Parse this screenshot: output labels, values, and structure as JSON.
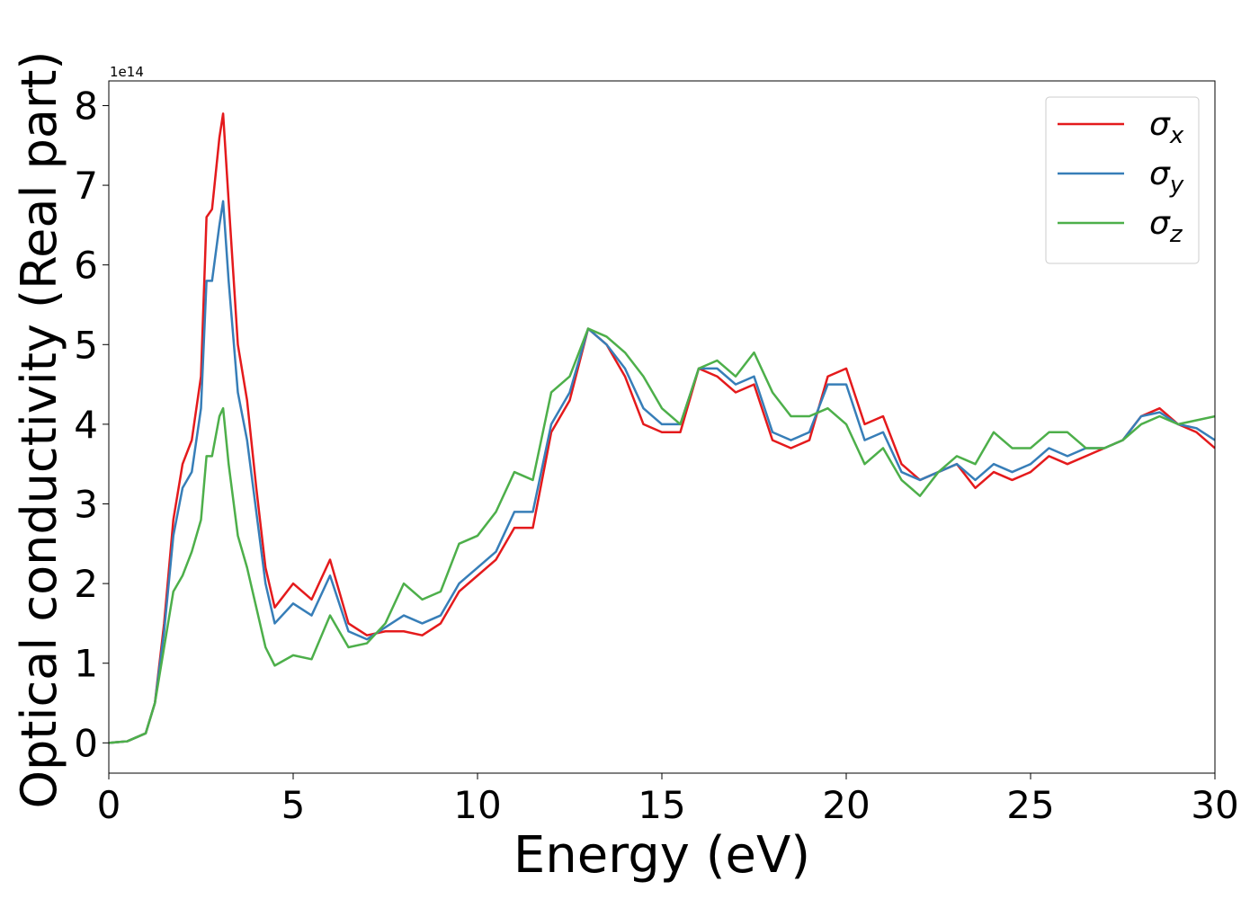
{
  "chart_data": {
    "type": "line",
    "x_label": "Energy (eV)",
    "y_label": "Optical conductivity (Real part)",
    "offset_label": "1e14",
    "x": [
      0,
      0.5,
      1,
      1.25,
      1.5,
      1.75,
      2,
      2.25,
      2.5,
      2.65,
      2.8,
      3.0,
      3.1,
      3.25,
      3.5,
      3.75,
      4,
      4.25,
      4.5,
      5,
      5.5,
      6,
      6.5,
      7,
      7.5,
      8,
      8.5,
      9,
      9.5,
      10,
      10.5,
      11,
      11.5,
      12,
      12.5,
      13,
      13.5,
      14,
      14.5,
      15,
      15.5,
      16,
      16.5,
      17,
      17.5,
      18,
      18.5,
      19,
      19.5,
      20,
      20.5,
      21,
      21.5,
      22,
      22.5,
      23,
      23.5,
      24,
      24.5,
      25,
      25.5,
      26,
      26.5,
      27,
      27.5,
      28,
      28.5,
      29,
      29.5,
      30
    ],
    "series": [
      {
        "name": "σx",
        "color": "#e41a1c",
        "values": [
          0,
          0.02,
          0.12,
          0.5,
          1.5,
          2.8,
          3.5,
          3.8,
          4.6,
          6.6,
          6.7,
          7.6,
          7.9,
          6.8,
          5.0,
          4.3,
          3.2,
          2.2,
          1.7,
          2.0,
          1.8,
          2.3,
          1.5,
          1.35,
          1.4,
          1.4,
          1.35,
          1.5,
          1.9,
          2.1,
          2.3,
          2.7,
          2.7,
          3.9,
          4.3,
          5.2,
          5.0,
          4.6,
          4.0,
          3.9,
          3.9,
          4.7,
          4.6,
          4.4,
          4.5,
          3.8,
          3.7,
          3.8,
          4.6,
          4.7,
          4.0,
          4.1,
          3.5,
          3.3,
          3.4,
          3.5,
          3.2,
          3.4,
          3.3,
          3.4,
          3.6,
          3.5,
          3.6,
          3.7,
          3.8,
          4.1,
          4.2,
          4.0,
          3.9,
          3.7
        ]
      },
      {
        "name": "σy",
        "color": "#377eb8",
        "values": [
          0,
          0.02,
          0.12,
          0.5,
          1.4,
          2.6,
          3.2,
          3.4,
          4.2,
          5.8,
          5.8,
          6.5,
          6.8,
          5.8,
          4.4,
          3.8,
          2.9,
          2.0,
          1.5,
          1.75,
          1.6,
          2.1,
          1.4,
          1.3,
          1.45,
          1.6,
          1.5,
          1.6,
          2.0,
          2.2,
          2.4,
          2.9,
          2.9,
          4.0,
          4.4,
          5.2,
          5.0,
          4.7,
          4.2,
          4.0,
          4.0,
          4.7,
          4.7,
          4.5,
          4.6,
          3.9,
          3.8,
          3.9,
          4.5,
          4.5,
          3.8,
          3.9,
          3.4,
          3.3,
          3.4,
          3.5,
          3.3,
          3.5,
          3.4,
          3.5,
          3.7,
          3.6,
          3.7,
          3.7,
          3.8,
          4.1,
          4.15,
          4.0,
          3.95,
          3.8
        ]
      },
      {
        "name": "σz",
        "color": "#4daf4a",
        "values": [
          0,
          0.02,
          0.12,
          0.5,
          1.2,
          1.9,
          2.1,
          2.4,
          2.8,
          3.6,
          3.6,
          4.1,
          4.2,
          3.5,
          2.6,
          2.2,
          1.7,
          1.2,
          0.97,
          1.1,
          1.05,
          1.6,
          1.2,
          1.25,
          1.5,
          2.0,
          1.8,
          1.9,
          2.5,
          2.6,
          2.9,
          3.4,
          3.3,
          4.4,
          4.6,
          5.2,
          5.1,
          4.9,
          4.6,
          4.2,
          4.0,
          4.7,
          4.8,
          4.6,
          4.9,
          4.4,
          4.1,
          4.1,
          4.2,
          4.0,
          3.5,
          3.7,
          3.3,
          3.1,
          3.4,
          3.6,
          3.5,
          3.9,
          3.7,
          3.7,
          3.9,
          3.9,
          3.7,
          3.7,
          3.8,
          4.0,
          4.1,
          4.0,
          4.05,
          4.1
        ]
      }
    ],
    "xlim": [
      0,
      30
    ],
    "xticks": [
      0,
      5,
      10,
      15,
      20,
      25,
      30
    ],
    "ylim": [
      -0.38,
      8.31
    ],
    "yticks": [
      0,
      1,
      2,
      3,
      4,
      5,
      6,
      7,
      8
    ],
    "legend": "upper right",
    "grid": false
  }
}
